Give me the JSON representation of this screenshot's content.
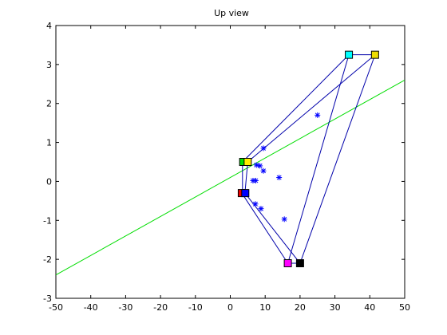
{
  "chart_data": {
    "type": "scatter",
    "title": "Up view",
    "xlabel": "",
    "ylabel": "",
    "xlim": [
      -50,
      50
    ],
    "ylim": [
      -3,
      4
    ],
    "xticks": [
      "-50",
      "-40",
      "-30",
      "-20",
      "-10",
      "0",
      "10",
      "20",
      "30",
      "40",
      "50"
    ],
    "yticks": [
      "-3",
      "-2",
      "-1",
      "0",
      "1",
      "2",
      "3",
      "4"
    ],
    "grid": false,
    "legend": "none",
    "series": [
      {
        "kind": "points",
        "marker": "star",
        "color": "#0000ff",
        "points": [
          [
            25,
            1.7
          ],
          [
            9.5,
            0.85
          ],
          [
            7.5,
            0.42
          ],
          [
            8.5,
            0.4
          ],
          [
            9.5,
            0.27
          ],
          [
            14,
            0.1
          ],
          [
            6.5,
            0.02
          ],
          [
            7.3,
            0.02
          ],
          [
            7.2,
            -0.58
          ],
          [
            8.8,
            -0.7
          ],
          [
            15.5,
            -0.97
          ]
        ]
      },
      {
        "kind": "line",
        "color": "#00dd00",
        "points": [
          [
            -50,
            -2.4
          ],
          [
            50,
            2.6
          ]
        ]
      },
      {
        "kind": "polylines",
        "color": "#0000aa",
        "segments": [
          [
            [
              3.5,
              0.5
            ],
            [
              34,
              3.25
            ]
          ],
          [
            [
              34,
              3.25
            ],
            [
              41.5,
              3.25
            ]
          ],
          [
            [
              5,
              0.5
            ],
            [
              41.5,
              3.25
            ]
          ],
          [
            [
              34,
              3.25
            ],
            [
              16.5,
              -2.1
            ]
          ],
          [
            [
              41.5,
              3.25
            ],
            [
              20,
              -2.1
            ]
          ],
          [
            [
              16.5,
              -2.1
            ],
            [
              20,
              -2.1
            ]
          ],
          [
            [
              3.5,
              0.5
            ],
            [
              3.5,
              -0.3
            ]
          ],
          [
            [
              5,
              0.5
            ],
            [
              4.2,
              -0.3
            ]
          ],
          [
            [
              3.3,
              -0.3
            ],
            [
              16.5,
              -2.1
            ]
          ],
          [
            [
              4.2,
              -0.3
            ],
            [
              20,
              -2.1
            ]
          ],
          [
            [
              3.3,
              -0.3
            ],
            [
              4.2,
              -0.3
            ]
          ]
        ]
      },
      {
        "kind": "squares",
        "points": [
          {
            "x": 3.7,
            "y": 0.5,
            "fill": "#00dd00"
          },
          {
            "x": 5,
            "y": 0.5,
            "fill": "#ffee00"
          },
          {
            "x": 3.3,
            "y": -0.3,
            "fill": "#ee0000"
          },
          {
            "x": 4.3,
            "y": -0.3,
            "fill": "#0000ff"
          },
          {
            "x": 34,
            "y": 3.25,
            "fill": "#00ffff"
          },
          {
            "x": 41.5,
            "y": 3.25,
            "fill": "#eedd00"
          },
          {
            "x": 16.5,
            "y": -2.1,
            "fill": "#ff00ff"
          },
          {
            "x": 20,
            "y": -2.1,
            "fill": "#000000"
          }
        ]
      }
    ]
  }
}
